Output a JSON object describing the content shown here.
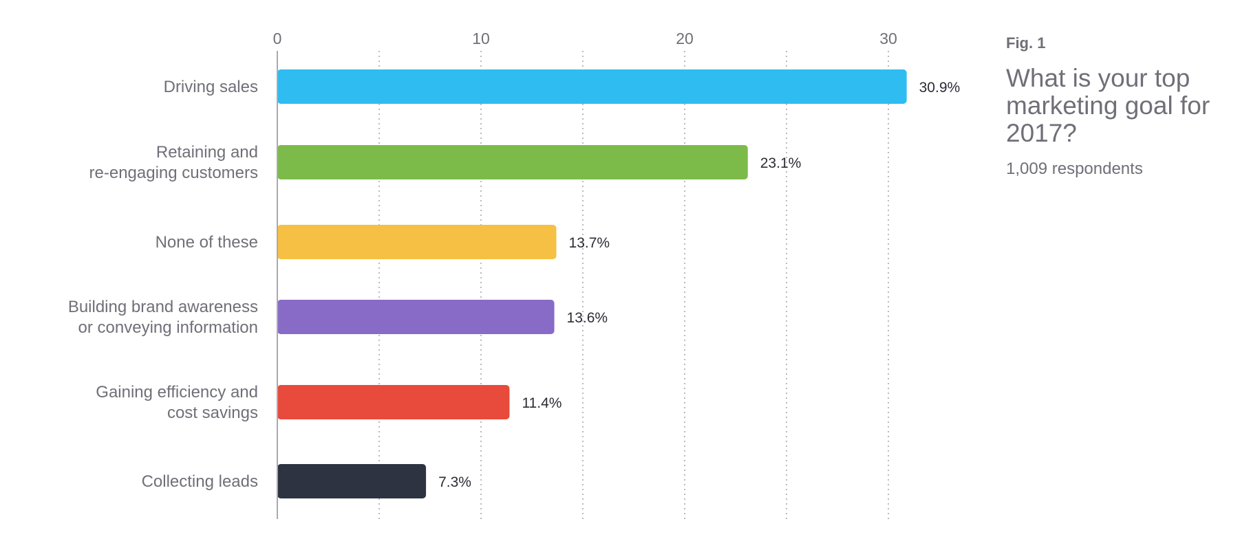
{
  "fig_label": "Fig. 1",
  "title": "What is your top marketing goal for 2017?",
  "subtitle": "1,009 respondents",
  "chart_data": {
    "type": "bar",
    "orientation": "horizontal",
    "categories": [
      [
        "Driving sales"
      ],
      [
        "Retaining and",
        "re-engaging customers"
      ],
      [
        "None of these"
      ],
      [
        "Building brand awareness",
        "or conveying information"
      ],
      [
        "Gaining efficiency and",
        "cost savings"
      ],
      [
        "Collecting leads"
      ]
    ],
    "values": [
      30.9,
      23.1,
      13.7,
      13.6,
      11.4,
      7.3
    ],
    "value_labels": [
      "30.9%",
      "23.1%",
      "13.7%",
      "13.6%",
      "11.4%",
      "7.3%"
    ],
    "colors": [
      "#2fbcf0",
      "#7cbb4a",
      "#f5c043",
      "#876bc6",
      "#e84a3b",
      "#2d3340"
    ],
    "x_ticks": [
      0,
      10,
      20,
      30
    ],
    "x_gridlines": [
      5,
      10,
      15,
      20,
      25,
      30
    ],
    "xlim": [
      0,
      35
    ],
    "axis_position": "top",
    "grid": true,
    "legend": false
  }
}
